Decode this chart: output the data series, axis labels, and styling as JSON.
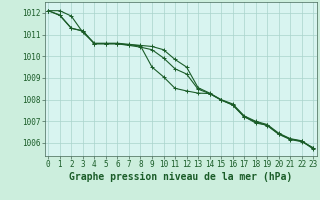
{
  "background_color": "#cceedd",
  "plot_bg_color": "#d8f4f0",
  "grid_color": "#aad4cc",
  "line_color": "#1a5c28",
  "xlabel": "Graphe pression niveau de la mer (hPa)",
  "xlabel_fontsize": 7,
  "yticks": [
    1006,
    1007,
    1008,
    1009,
    1010,
    1011,
    1012
  ],
  "xticks": [
    0,
    1,
    2,
    3,
    4,
    5,
    6,
    7,
    8,
    9,
    10,
    11,
    12,
    13,
    14,
    15,
    16,
    17,
    18,
    19,
    20,
    21,
    22,
    23
  ],
  "ylim": [
    1005.4,
    1012.5
  ],
  "xlim": [
    -0.3,
    23.3
  ],
  "series": [
    [
      1012.1,
      1012.1,
      1011.85,
      1011.1,
      1010.6,
      1010.6,
      1010.6,
      1010.55,
      1010.5,
      1010.45,
      1010.3,
      1009.85,
      1009.5,
      1008.55,
      1008.3,
      1008.0,
      1007.8,
      1007.25,
      1007.0,
      1006.85,
      1006.45,
      1006.2,
      1006.1,
      1005.75
    ],
    [
      1012.1,
      1011.9,
      1011.3,
      1011.15,
      1010.58,
      1010.58,
      1010.58,
      1010.52,
      1010.48,
      1009.5,
      1009.05,
      1008.52,
      1008.4,
      1008.3,
      1008.28,
      1007.98,
      1007.76,
      1007.22,
      1006.92,
      1006.82,
      1006.42,
      1006.18,
      1006.08,
      1005.72
    ],
    [
      1012.1,
      1011.88,
      1011.28,
      1011.18,
      1010.57,
      1010.57,
      1010.57,
      1010.5,
      1010.42,
      1010.3,
      1009.92,
      1009.42,
      1009.18,
      1008.48,
      1008.28,
      1007.98,
      1007.75,
      1007.2,
      1006.98,
      1006.8,
      1006.4,
      1006.16,
      1006.06,
      1005.78
    ]
  ],
  "marker": "+",
  "markersize": 3,
  "linewidth": 0.8,
  "tick_fontsize": 5.5,
  "spine_color": "#446655"
}
